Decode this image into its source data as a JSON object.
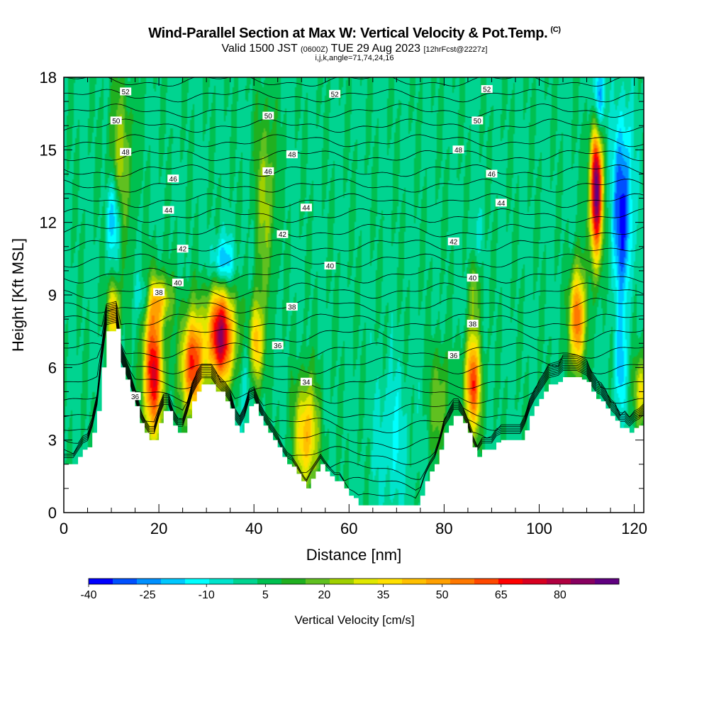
{
  "header": {
    "title": "Wind-Parallel Section at Max W: Vertical Velocity & Pot.Temp.",
    "copyright": "(C)",
    "valid_prefix": "Valid 1500 JST",
    "valid_zulu": "(0600Z)",
    "valid_date": "TUE 29 Aug 2023",
    "forecast": "[12hrFcst@2227z]",
    "grid_info": "i,j,k,angle=71,74,24,16"
  },
  "chart_data": {
    "type": "heatmap",
    "xlabel": "Distance [nm]",
    "ylabel": "Height [Kft MSL]",
    "xlim": [
      0,
      122
    ],
    "ylim": [
      0,
      18
    ],
    "x_ticks": [
      0,
      20,
      40,
      60,
      80,
      100,
      120
    ],
    "y_ticks": [
      0,
      3,
      6,
      9,
      12,
      15,
      18
    ],
    "colorbar": {
      "label": "Vertical Velocity [cm/s]",
      "tick_labels": [
        "-40",
        "-25",
        "-10",
        "5",
        "20",
        "35",
        "50",
        "65",
        "80"
      ],
      "tick_values": [
        -40,
        -25,
        -10,
        5,
        20,
        35,
        50,
        65,
        80
      ],
      "min": -40,
      "max": 95,
      "colors": [
        "#0000ff",
        "#0050ff",
        "#0090ff",
        "#00c8ff",
        "#00ffff",
        "#00e4cc",
        "#00d490",
        "#00c050",
        "#20b020",
        "#60c020",
        "#a0d000",
        "#e0e800",
        "#ffe000",
        "#ffc000",
        "#ffa000",
        "#ff7800",
        "#ff4800",
        "#ff0000",
        "#d80020",
        "#b00040",
        "#880060",
        "#600080"
      ]
    },
    "terrain": [
      [
        0,
        2.0
      ],
      [
        2,
        2.0
      ],
      [
        3,
        2.3
      ],
      [
        4,
        2.6
      ],
      [
        5,
        2.7
      ],
      [
        6,
        3.3
      ],
      [
        7,
        4.2
      ],
      [
        8,
        6.0
      ],
      [
        9,
        7.5
      ],
      [
        11,
        7.6
      ],
      [
        12,
        6.0
      ],
      [
        13,
        5.5
      ],
      [
        14,
        5.0
      ],
      [
        15,
        4.4
      ],
      [
        16,
        3.7
      ],
      [
        17,
        3.3
      ],
      [
        18,
        3.0
      ],
      [
        19,
        3.0
      ],
      [
        20,
        3.7
      ],
      [
        21,
        4.2
      ],
      [
        22,
        4.2
      ],
      [
        23,
        3.6
      ],
      [
        24,
        3.3
      ],
      [
        25,
        3.3
      ],
      [
        26,
        3.9
      ],
      [
        27,
        4.6
      ],
      [
        28,
        5.0
      ],
      [
        29,
        5.3
      ],
      [
        31,
        5.3
      ],
      [
        32,
        5.0
      ],
      [
        34,
        4.6
      ],
      [
        35,
        4.3
      ],
      [
        36,
        3.6
      ],
      [
        37,
        3.3
      ],
      [
        38,
        3.7
      ],
      [
        39,
        4.4
      ],
      [
        40,
        4.5
      ],
      [
        41,
        4.0
      ],
      [
        42,
        3.6
      ],
      [
        43,
        3.3
      ],
      [
        44,
        3.0
      ],
      [
        45,
        2.7
      ],
      [
        46,
        2.3
      ],
      [
        47,
        2.0
      ],
      [
        48,
        1.9
      ],
      [
        49,
        1.6
      ],
      [
        50,
        1.3
      ],
      [
        51,
        1.0
      ],
      [
        52,
        1.4
      ],
      [
        53,
        1.7
      ],
      [
        54,
        2.0
      ],
      [
        55,
        1.7
      ],
      [
        56,
        1.5
      ],
      [
        57,
        1.3
      ],
      [
        58,
        1.3
      ],
      [
        59,
        1.0
      ],
      [
        60,
        0.7
      ],
      [
        61,
        0.6
      ],
      [
        62,
        0.3
      ],
      [
        63,
        0.3
      ],
      [
        74,
        0.3
      ],
      [
        75,
        0.7
      ],
      [
        76,
        1.3
      ],
      [
        77,
        1.7
      ],
      [
        78,
        2.0
      ],
      [
        79,
        2.6
      ],
      [
        80,
        3.3
      ],
      [
        81,
        3.6
      ],
      [
        82,
        4.0
      ],
      [
        83,
        4.0
      ],
      [
        84,
        3.7
      ],
      [
        85,
        3.3
      ],
      [
        86,
        2.7
      ],
      [
        87,
        2.3
      ],
      [
        88,
        2.6
      ],
      [
        90,
        2.6
      ],
      [
        91,
        2.9
      ],
      [
        92,
        3.0
      ],
      [
        96,
        3.0
      ],
      [
        97,
        3.4
      ],
      [
        98,
        4.0
      ],
      [
        99,
        4.4
      ],
      [
        100,
        4.7
      ],
      [
        101,
        5.0
      ],
      [
        102,
        5.3
      ],
      [
        104,
        5.4
      ],
      [
        105,
        5.6
      ],
      [
        106,
        5.6
      ],
      [
        108,
        5.6
      ],
      [
        109,
        5.5
      ],
      [
        110,
        5.4
      ],
      [
        111,
        5.0
      ],
      [
        112,
        4.7
      ],
      [
        113,
        4.6
      ],
      [
        114,
        4.3
      ],
      [
        115,
        4.0
      ],
      [
        116,
        3.8
      ],
      [
        117,
        3.5
      ],
      [
        118,
        3.5
      ],
      [
        119,
        3.3
      ],
      [
        120,
        3.5
      ],
      [
        121,
        3.6
      ],
      [
        122,
        3.8
      ]
    ],
    "updrafts": [
      {
        "x": 10.5,
        "y": 8.2,
        "sx": 0.9,
        "sy": 0.9,
        "w": 45
      },
      {
        "x": 12.0,
        "y": 14.5,
        "sx": 1.8,
        "sy": 2.4,
        "w": 22
      },
      {
        "x": 18.8,
        "y": 5.8,
        "sx": 1.5,
        "sy": 2.0,
        "w": 70
      },
      {
        "x": 20.0,
        "y": 8.8,
        "sx": 2.0,
        "sy": 0.7,
        "w": 30
      },
      {
        "x": 27.0,
        "y": 6.1,
        "sx": 1.6,
        "sy": 1.5,
        "w": 65
      },
      {
        "x": 33.0,
        "y": 7.3,
        "sx": 2.1,
        "sy": 1.4,
        "w": 80
      },
      {
        "x": 40.5,
        "y": 7.0,
        "sx": 1.0,
        "sy": 1.3,
        "w": 45
      },
      {
        "x": 42.5,
        "y": 13.0,
        "sx": 1.5,
        "sy": 2.8,
        "w": 22
      },
      {
        "x": 51.0,
        "y": 3.2,
        "sx": 1.7,
        "sy": 1.6,
        "w": 45
      },
      {
        "x": 79.0,
        "y": 4.6,
        "sx": 1.4,
        "sy": 1.5,
        "w": 20
      },
      {
        "x": 86.0,
        "y": 5.3,
        "sx": 1.2,
        "sy": 1.4,
        "w": 62
      },
      {
        "x": 86.5,
        "y": 9.5,
        "sx": 0.9,
        "sy": 1.3,
        "w": 20
      },
      {
        "x": 108.0,
        "y": 8.0,
        "sx": 1.1,
        "sy": 1.5,
        "w": 60
      },
      {
        "x": 112.0,
        "y": 13.3,
        "sx": 0.9,
        "sy": 2.0,
        "w": 95
      },
      {
        "x": 121.5,
        "y": 5.0,
        "sx": 1.2,
        "sy": 1.0,
        "w": 30
      }
    ],
    "downdrafts": [
      {
        "x": 10.5,
        "y": 12.2,
        "sx": 1.0,
        "sy": 1.2,
        "w": -28
      },
      {
        "x": 17.0,
        "y": 8.9,
        "sx": 1.2,
        "sy": 0.6,
        "w": -20
      },
      {
        "x": 33.5,
        "y": 10.3,
        "sx": 1.6,
        "sy": 0.7,
        "w": -28
      },
      {
        "x": 38.5,
        "y": 5.4,
        "sx": 1.0,
        "sy": 1.4,
        "w": -12
      },
      {
        "x": 69.0,
        "y": 3.0,
        "sx": 2.5,
        "sy": 2.0,
        "w": -12
      },
      {
        "x": 86.5,
        "y": 11.0,
        "sx": 0.9,
        "sy": 1.0,
        "w": -14
      },
      {
        "x": 112.5,
        "y": 17.0,
        "sx": 0.8,
        "sy": 1.2,
        "w": -38
      },
      {
        "x": 117.5,
        "y": 12.5,
        "sx": 1.4,
        "sy": 2.6,
        "w": -40
      },
      {
        "x": 117.0,
        "y": 6.0,
        "sx": 0.8,
        "sy": 1.4,
        "w": -22
      }
    ],
    "contour_labels": [
      {
        "text": "52",
        "x": 13,
        "y": 17.4
      },
      {
        "text": "52",
        "x": 57,
        "y": 17.3
      },
      {
        "text": "52",
        "x": 89,
        "y": 17.5
      },
      {
        "text": "50",
        "x": 11,
        "y": 16.2
      },
      {
        "text": "50",
        "x": 43,
        "y": 16.4
      },
      {
        "text": "50",
        "x": 87,
        "y": 16.2
      },
      {
        "text": "48",
        "x": 13,
        "y": 14.9
      },
      {
        "text": "48",
        "x": 48,
        "y": 14.8
      },
      {
        "text": "48",
        "x": 83,
        "y": 15.0
      },
      {
        "text": "46",
        "x": 23,
        "y": 13.8
      },
      {
        "text": "46",
        "x": 43,
        "y": 14.1
      },
      {
        "text": "46",
        "x": 90,
        "y": 14.0
      },
      {
        "text": "44",
        "x": 22,
        "y": 12.5
      },
      {
        "text": "44",
        "x": 51,
        "y": 12.6
      },
      {
        "text": "44",
        "x": 92,
        "y": 12.8
      },
      {
        "text": "42",
        "x": 25,
        "y": 10.9
      },
      {
        "text": "42",
        "x": 46,
        "y": 11.5
      },
      {
        "text": "42",
        "x": 82,
        "y": 11.2
      },
      {
        "text": "40",
        "x": 24,
        "y": 9.5
      },
      {
        "text": "40",
        "x": 56,
        "y": 10.2
      },
      {
        "text": "40",
        "x": 86,
        "y": 9.7
      },
      {
        "text": "38",
        "x": 20,
        "y": 9.1
      },
      {
        "text": "38",
        "x": 48,
        "y": 8.5
      },
      {
        "text": "38",
        "x": 86,
        "y": 7.8
      },
      {
        "text": "36",
        "x": 45,
        "y": 6.9
      },
      {
        "text": "36",
        "x": 82,
        "y": 6.5
      },
      {
        "text": "36",
        "x": 15,
        "y": 4.8
      },
      {
        "text": "34",
        "x": 51,
        "y": 5.4
      }
    ]
  }
}
